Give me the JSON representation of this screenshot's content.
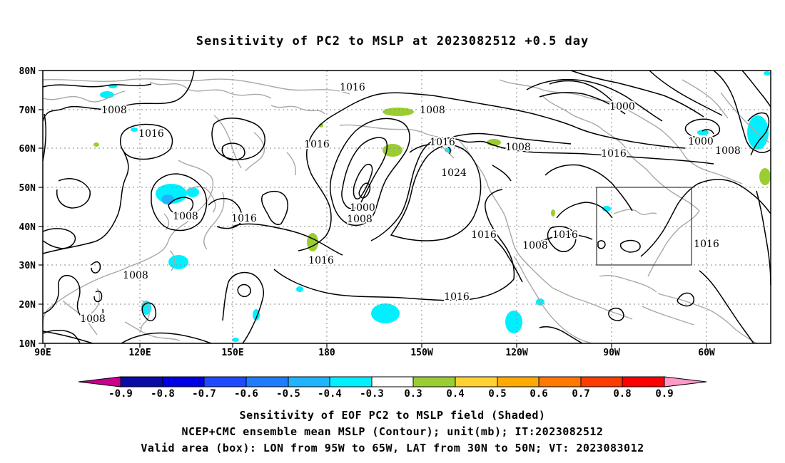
{
  "title": "Sensitivity of PC2 to MSLP at 2023082512 +0.5 day",
  "map": {
    "lat_labels": [
      "80N",
      "70N",
      "60N",
      "50N",
      "40N",
      "30N",
      "20N",
      "10N"
    ],
    "lon_labels": [
      "90E",
      "120E",
      "150E",
      "180",
      "150W",
      "120W",
      "90W",
      "60W"
    ],
    "contour_labels": [
      "1016",
      "1008",
      "1016",
      "1008",
      "1000",
      "1016",
      "1008",
      "1016",
      "1016",
      "1000",
      "1008",
      "1016",
      "1024",
      "1000",
      "1008",
      "1008",
      "1016",
      "1016",
      "1016",
      "1008",
      "1016",
      "1016",
      "1008",
      "1008",
      "1016"
    ],
    "validation_box": {
      "lon_range": [
        "95W",
        "65W"
      ],
      "lat_range": [
        "30N",
        "50N"
      ]
    },
    "colors": {
      "coastline": "#a8a8a8",
      "contour": "#000000",
      "grid": "#888888"
    }
  },
  "colorbar": {
    "labels": [
      "-0.9",
      "-0.8",
      "-0.7",
      "-0.6",
      "-0.5",
      "-0.4",
      "-0.3",
      "0.3",
      "0.4",
      "0.5",
      "0.6",
      "0.7",
      "0.8",
      "0.9"
    ],
    "colors": [
      "#0a0aa8",
      "#0000e6",
      "#1e4bff",
      "#1e7dff",
      "#1eb4ff",
      "#00f0ff",
      "#ffffff",
      "#9acd32",
      "#ffd232",
      "#ffaa00",
      "#ff7800",
      "#ff3c00",
      "#ff0000"
    ],
    "left_end_color": "#c8008c",
    "right_end_color": "#ff9ac8"
  },
  "footer": {
    "line1": "Sensitivity of EOF PC2 to MSLP field (Shaded)",
    "line2": "NCEP+CMC ensemble mean MSLP (Contour); unit(mb); IT:2023082512",
    "line3": "Valid area (box): LON from 95W to 65W, LAT from 30N to 50N; VT: 2023083012"
  }
}
